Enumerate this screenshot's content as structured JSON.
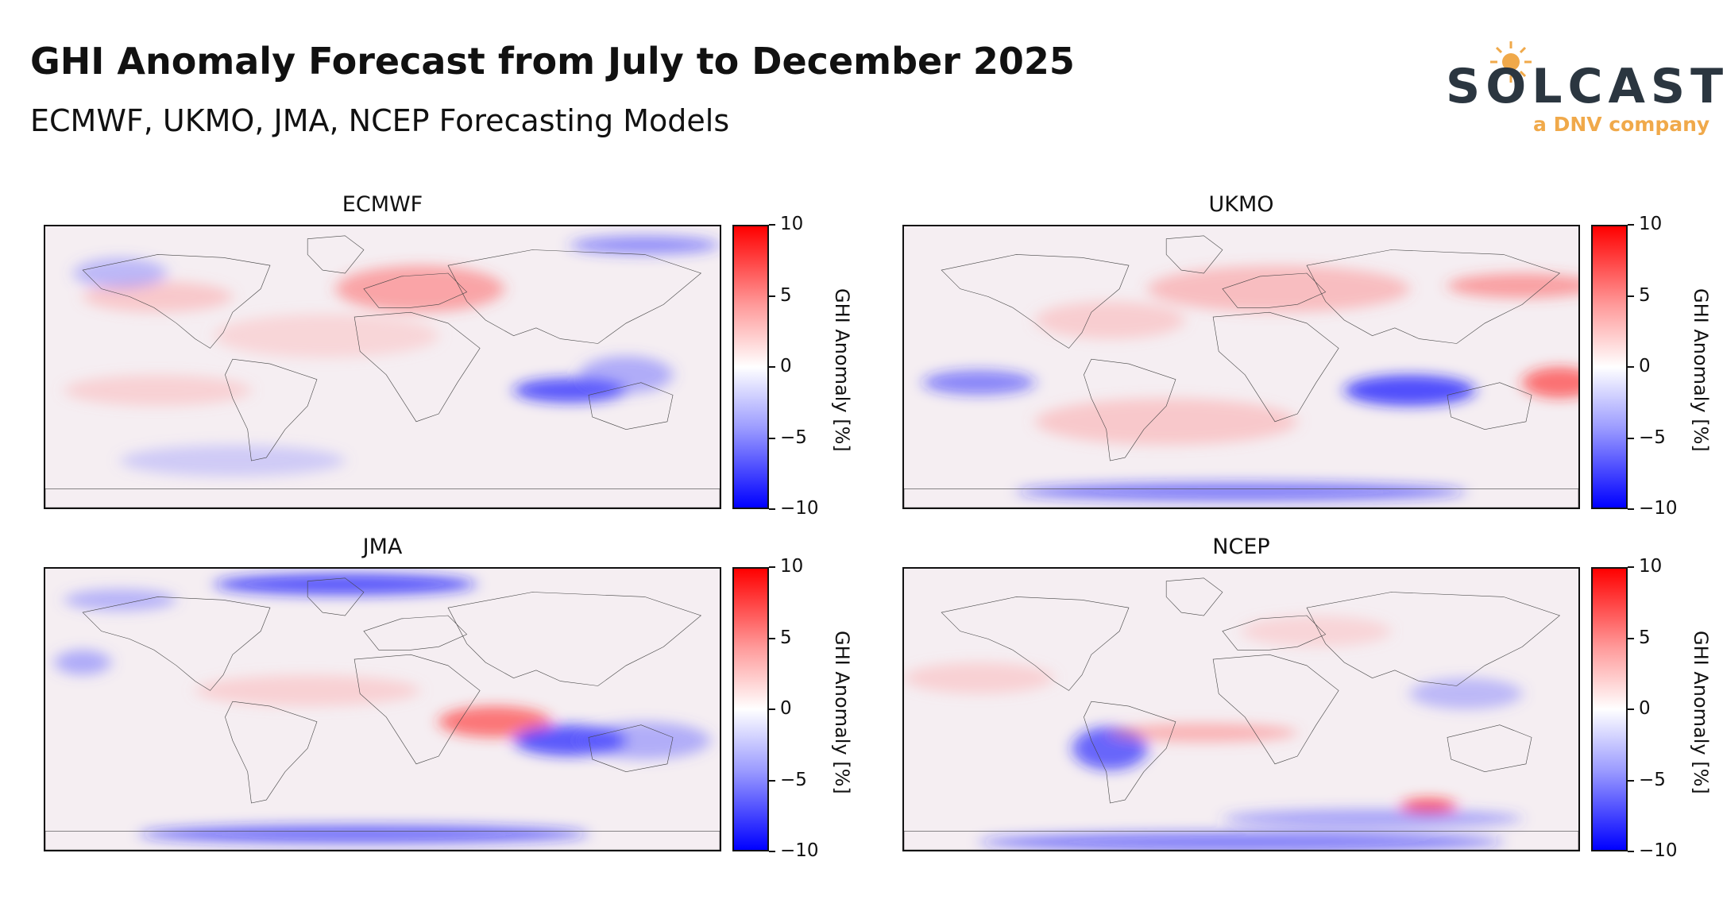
{
  "header": {
    "title": "GHI Anomaly Forecast from July to December 2025",
    "subtitle": "ECMWF, UKMO, JMA, NCEP Forecasting Models"
  },
  "logo": {
    "wordmark": "SOLCAST",
    "tagline": "a DNV company",
    "colors": {
      "text": "#2b3640",
      "accent": "#f0a94a"
    }
  },
  "colorbar": {
    "label": "GHI Anomaly [%]",
    "ticks": [
      "10",
      "5",
      "0",
      "−5",
      "−10"
    ],
    "range": [
      -10,
      10
    ],
    "colormap": "bwr",
    "colors": {
      "high": "#ff0000",
      "mid": "#ffffff",
      "low": "#0000ff"
    }
  },
  "panels": [
    {
      "title": "ECMWF"
    },
    {
      "title": "UKMO"
    },
    {
      "title": "JMA"
    },
    {
      "title": "NCEP"
    }
  ]
}
